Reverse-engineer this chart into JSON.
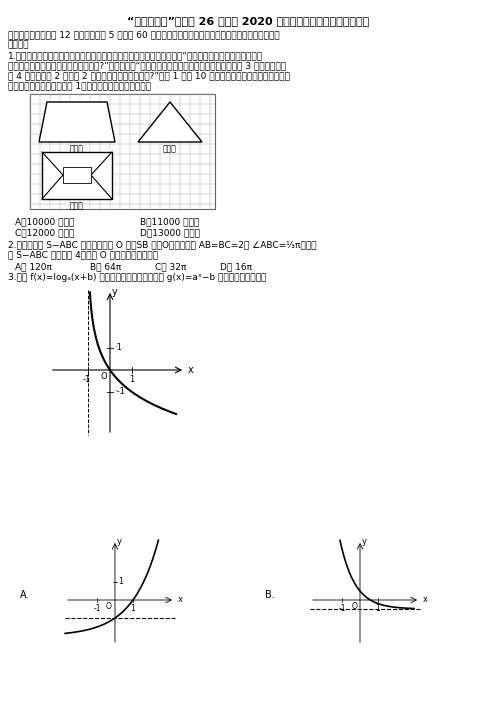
{
  "title": "“超级全能生”全国卷 26 省联考 2020 届高考数学（理）试题（甲卷）",
  "line1": "一、选择题：本题共 12 小题，每小题 5 分，共 60 分。在每小题给出的四个选项中，只有一项是符合题目",
  "line2": "要求的。",
  "q1_l1": "1.《九章算术》是我国古代内容极为丰富的数学名著，书中有如下问题：“令有付墓，下广三丨，麦四丨，",
  "q1_l2": "上衰二丨，无广，高二丨，问：积几何?”其意思为：“今有底面为矩形的屋骊状的樿体，下底面宽 3 丨，麦四丨，",
  "q1_l3": "长 4 丨，上棱长 2 丨，高 2 丨，问：它的体积是多少?”已矤 1 丨为 10 尺，该棱体的三视图如图所示，其",
  "q1_l4": "中网格纸上小正方形边长为 1，则该棱体的体积为（　　）",
  "q1_optA": "A．10000 立方尺",
  "q1_optB": "B．11000 立方尺",
  "q1_optC": "C．12000 立方尺",
  "q1_optD": "D．13000 立方尺",
  "q2_l1": "2.已知三棱锥 S−ABC 各顶点均在球 O 上，SB 为球O的直径，若 AB=BC=2， ∠ABC=⅓π，三棱",
  "q2_l2": "锥 S−ABC 的体积为 4，则球 O 的表面积为（　　）",
  "q2_optA": "A。 120π",
  "q2_optB": "B。 64π",
  "q2_optC": "C。 32π",
  "q2_optD": "D。 16π",
  "q3_l1": "3.函数 f(x)=logₐ(x+b) 大致图象如图所示，则函数 g(x)=aˣ−b 图象可能是（　　）",
  "bg_color": "#ffffff"
}
